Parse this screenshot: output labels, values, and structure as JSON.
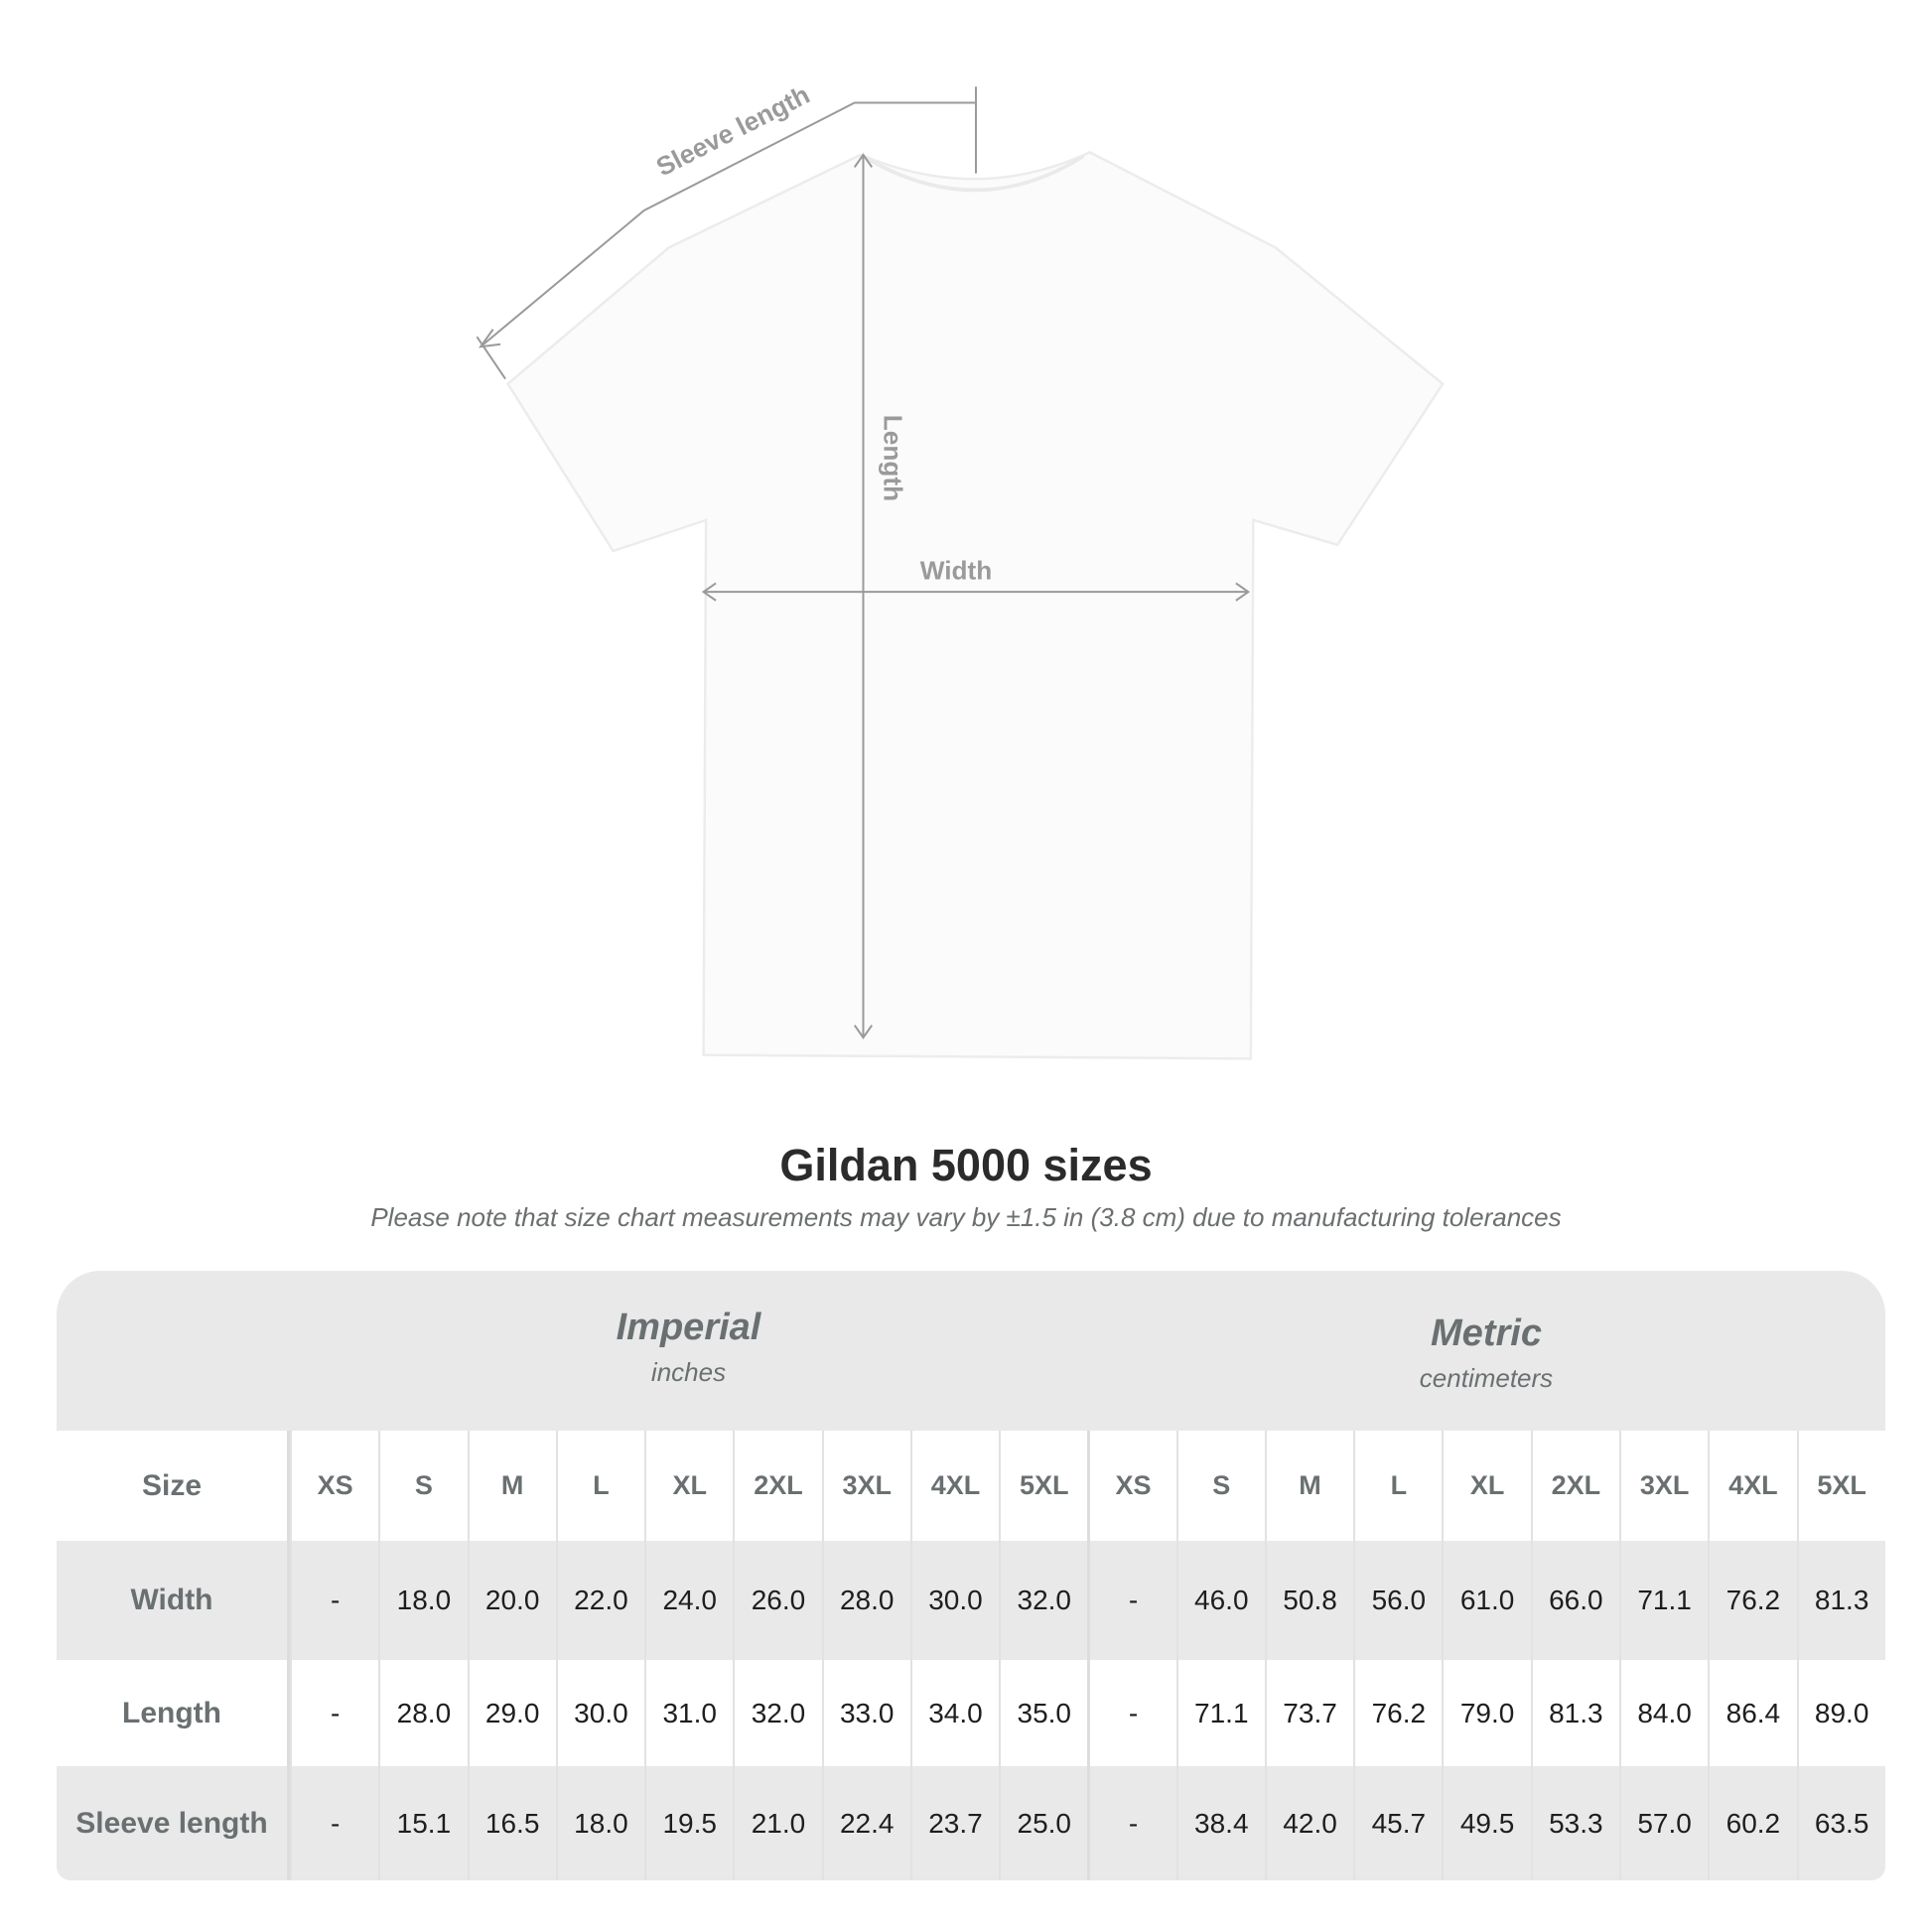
{
  "diagram": {
    "labels": {
      "sleeve": "Sleeve length",
      "length": "Length",
      "width": "Width"
    }
  },
  "title": "Gildan 5000 sizes",
  "note": "Please note that size chart measurements may vary by ±1.5 in (3.8 cm) due to manufacturing tolerances",
  "table": {
    "imperial": {
      "title": "Imperial",
      "unit": "inches"
    },
    "metric": {
      "title": "Metric",
      "unit": "centimeters"
    },
    "size_label": "Size",
    "sizes": [
      "XS",
      "S",
      "M",
      "L",
      "XL",
      "2XL",
      "3XL",
      "4XL",
      "5XL"
    ],
    "rows": [
      {
        "label": "Width",
        "imperial": [
          "-",
          "18.0",
          "20.0",
          "22.0",
          "24.0",
          "26.0",
          "28.0",
          "30.0",
          "32.0"
        ],
        "metric": [
          "-",
          "46.0",
          "50.8",
          "56.0",
          "61.0",
          "66.0",
          "71.1",
          "76.2",
          "81.3"
        ]
      },
      {
        "label": "Length",
        "imperial": [
          "-",
          "28.0",
          "29.0",
          "30.0",
          "31.0",
          "32.0",
          "33.0",
          "34.0",
          "35.0"
        ],
        "metric": [
          "-",
          "71.1",
          "73.7",
          "76.2",
          "79.0",
          "81.3",
          "84.0",
          "86.4",
          "89.0"
        ]
      },
      {
        "label": "Sleeve length",
        "imperial": [
          "-",
          "15.1",
          "16.5",
          "18.0",
          "19.5",
          "21.0",
          "22.4",
          "23.7",
          "25.0"
        ],
        "metric": [
          "-",
          "38.4",
          "42.0",
          "45.7",
          "49.5",
          "53.3",
          "57.0",
          "60.2",
          "63.5"
        ]
      }
    ]
  }
}
